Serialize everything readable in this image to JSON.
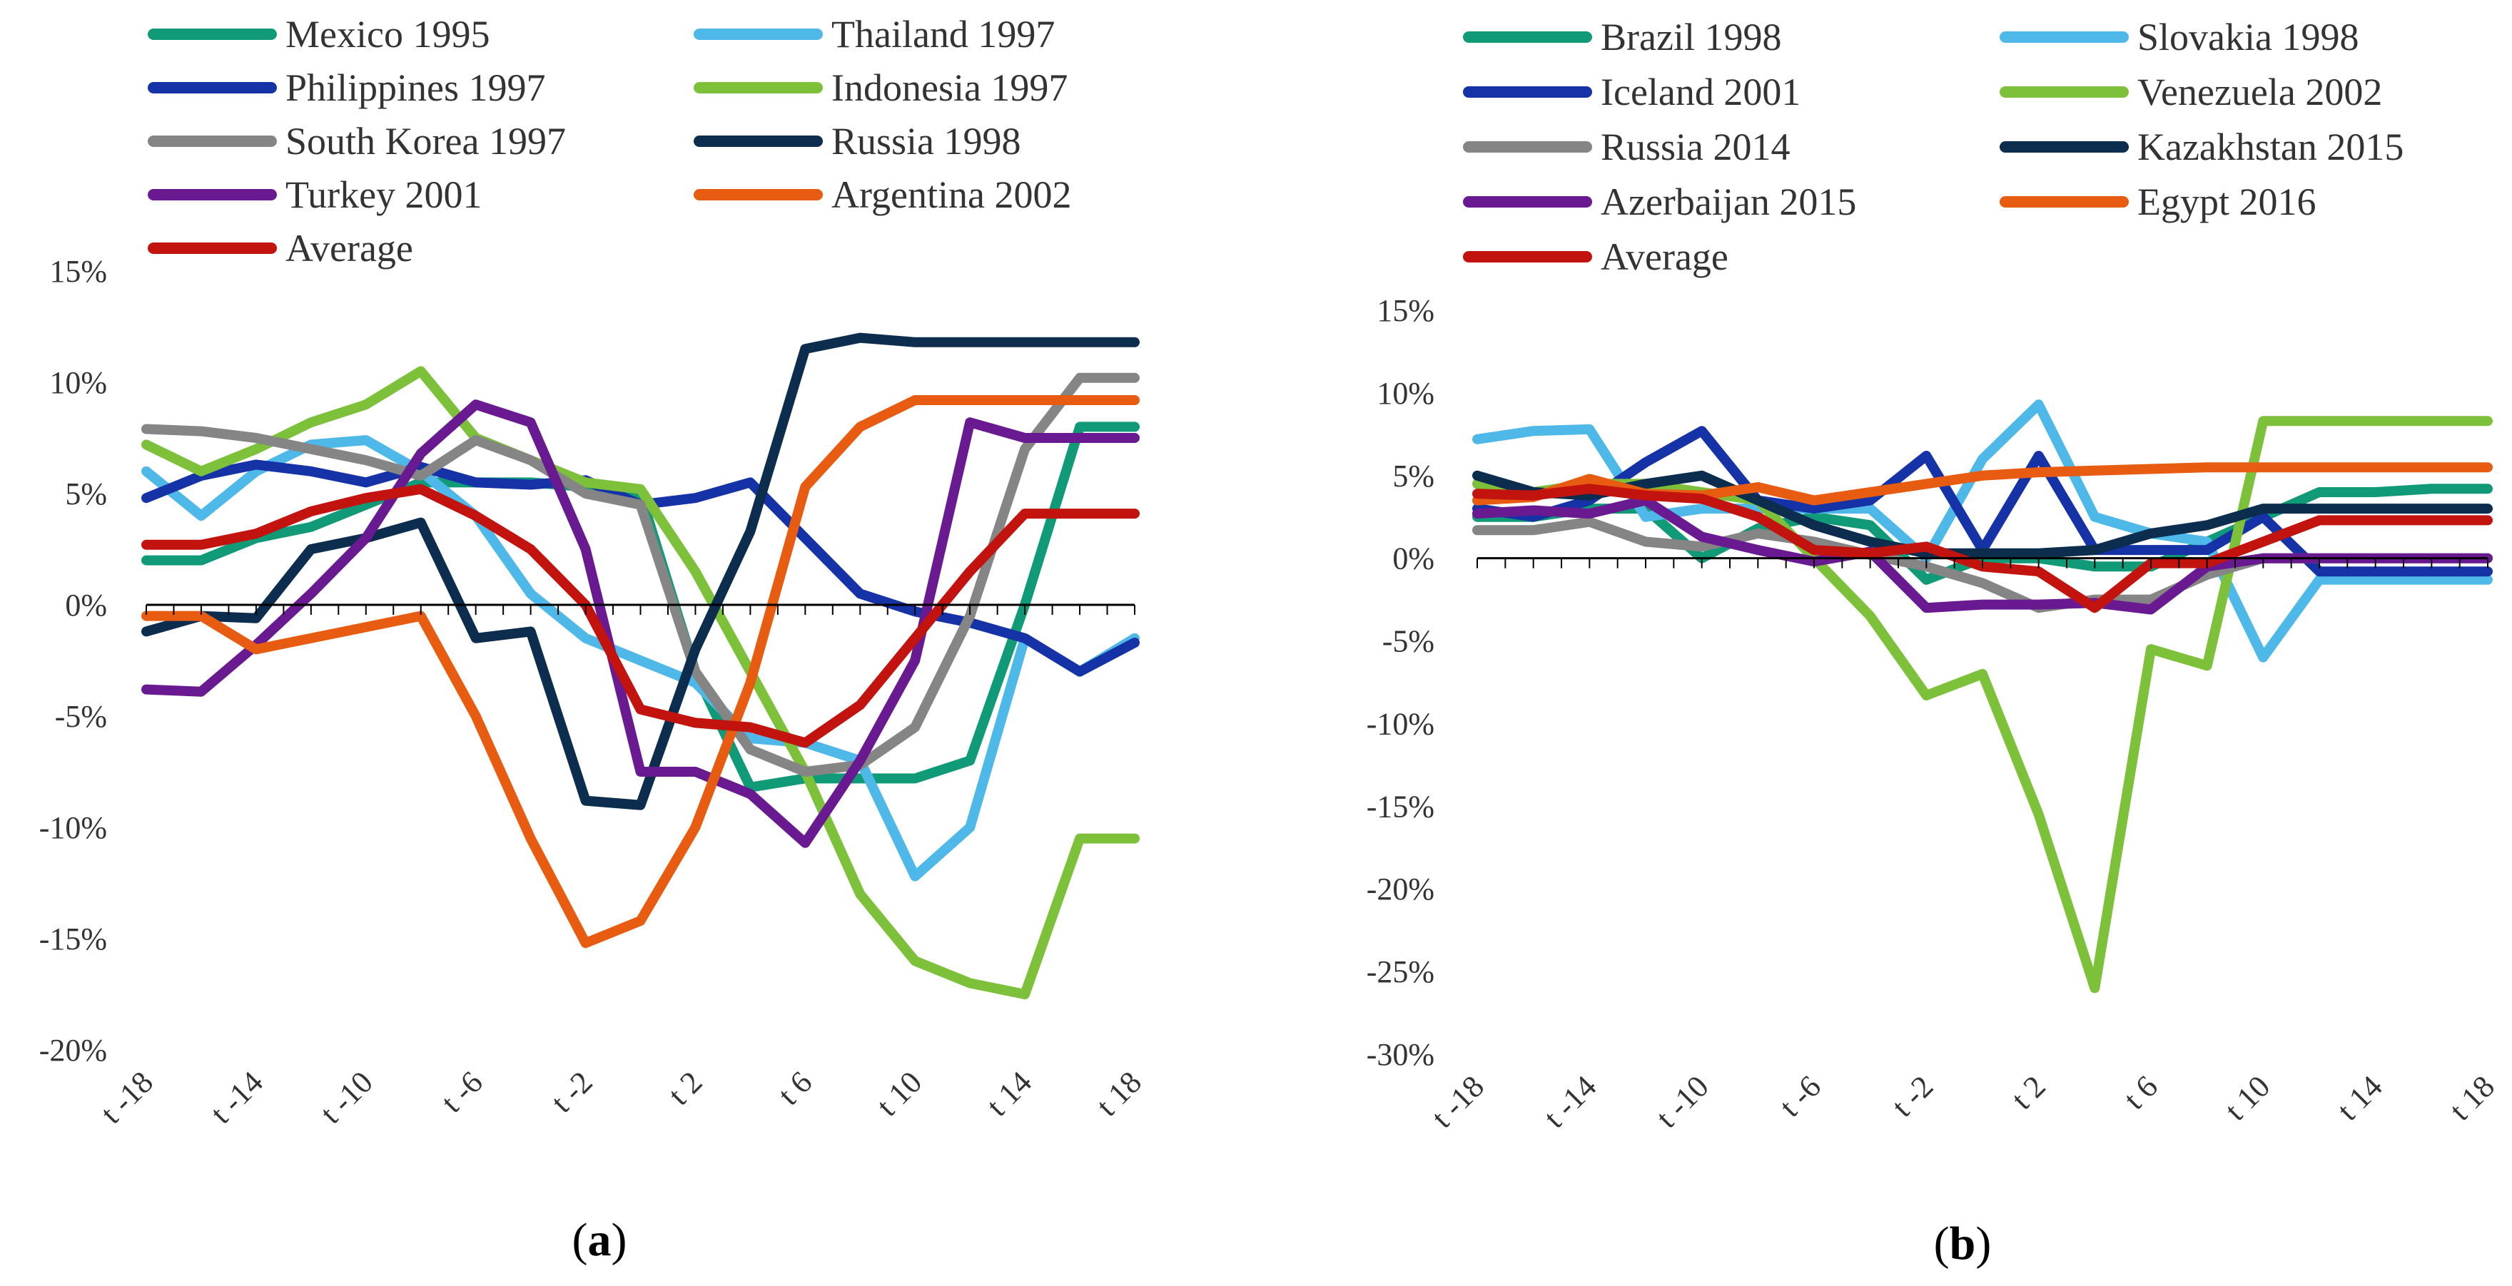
{
  "chart_data": [
    {
      "type": "line",
      "caption": "(a)",
      "caption_letter": "a",
      "ylim": [
        -20,
        15
      ],
      "y_ticks": [
        15,
        10,
        5,
        0,
        -5,
        -10,
        -15,
        -20
      ],
      "y_tick_labels": [
        "15%",
        "10%",
        "5%",
        "0%",
        "-5%",
        "-10%",
        "-15%",
        "-20%"
      ],
      "x_tick_labels": [
        "t -18",
        "t -14",
        "t -10",
        "t -6",
        "t -2",
        "t 2",
        "t 6",
        "t 10",
        "t 14",
        "t 18"
      ],
      "x_tick_values": [
        -18,
        -14,
        -10,
        -6,
        -2,
        2,
        6,
        10,
        14,
        18
      ],
      "x": [
        -18,
        -16,
        -14,
        -12,
        -10,
        -8,
        -6,
        -4,
        -2,
        0,
        2,
        4,
        6,
        8,
        10,
        12,
        14,
        16,
        18
      ],
      "legend_placement": "top",
      "series": [
        {
          "name": "Mexico 1995",
          "color": "#109A78",
          "values": [
            2,
            2,
            3,
            3.5,
            4.5,
            5.5,
            5.5,
            5.5,
            5.3,
            5,
            -3,
            -8.2,
            -7.8,
            -7.8,
            -7.8,
            -7,
            0,
            8,
            8
          ]
        },
        {
          "name": "Thailand 1997",
          "color": "#4EB8E8",
          "values": [
            6,
            4,
            6,
            7.2,
            7.4,
            6,
            4,
            0.5,
            -1.5,
            -2.5,
            -3.5,
            -6,
            -6.2,
            -7,
            -12.2,
            -10,
            -1.5,
            -3,
            -1.5
          ]
        },
        {
          "name": "Philippines 1997",
          "color": "#1632A7",
          "values": [
            4.8,
            5.8,
            6.3,
            6,
            5.5,
            6.2,
            5.5,
            5.4,
            5.6,
            4.5,
            4.8,
            5.5,
            3,
            0.5,
            -0.3,
            -0.8,
            -1.5,
            -3,
            -1.7
          ]
        },
        {
          "name": "Indonesia 1997",
          "color": "#7DC13B",
          "values": [
            7.2,
            6,
            7,
            8.2,
            9,
            10.5,
            7.5,
            6.5,
            5.5,
            5.2,
            1.5,
            -3,
            -7.5,
            -13,
            -16,
            -17,
            -17.5,
            -10.5,
            -10.5
          ]
        },
        {
          "name": "South Korea 1997",
          "color": "#858585",
          "values": [
            7.9,
            7.8,
            7.5,
            7,
            6.5,
            5.8,
            7.4,
            6.5,
            5,
            4.5,
            -3,
            -6.5,
            -7.5,
            -7.2,
            -5.5,
            -0.5,
            7,
            10.2,
            10.2
          ]
        },
        {
          "name": "Russia 1998",
          "color": "#0C2D4E",
          "values": [
            -1.2,
            -0.5,
            -0.6,
            2.5,
            3,
            3.7,
            -1.5,
            -1.2,
            -8.8,
            -9,
            -2,
            3.3,
            11.5,
            12,
            11.8,
            11.8,
            11.8,
            11.8,
            11.8
          ]
        },
        {
          "name": "Turkey 2001",
          "color": "#6A1A91",
          "values": [
            -3.8,
            -3.9,
            -1.8,
            0.5,
            3,
            6.8,
            9,
            8.2,
            2.5,
            -7.5,
            -7.5,
            -8.5,
            -10.7,
            -7,
            -2.5,
            8.2,
            7.5,
            7.5,
            7.5
          ]
        },
        {
          "name": "Argentina 2002",
          "color": "#E85C12",
          "values": [
            -0.5,
            -0.5,
            -2,
            -1.5,
            -1,
            -0.5,
            -5,
            -10.5,
            -15.2,
            -14.2,
            -10,
            -3.5,
            5.3,
            8,
            9.2,
            9.2,
            9.2,
            9.2,
            9.2
          ]
        },
        {
          "name": "Average",
          "color": "#C3130E",
          "values": [
            2.7,
            2.7,
            3.2,
            4.2,
            4.8,
            5.2,
            4,
            2.5,
            0,
            -4.7,
            -5.3,
            -5.5,
            -6.2,
            -4.5,
            -1.5,
            1.5,
            4.1,
            4.1,
            4.1
          ]
        }
      ]
    },
    {
      "type": "line",
      "caption": "(b)",
      "caption_letter": "b",
      "ylim": [
        -30,
        15
      ],
      "y_ticks": [
        15,
        10,
        5,
        0,
        -5,
        -10,
        -15,
        -20,
        -25,
        -30
      ],
      "y_tick_labels": [
        "15%",
        "10%",
        "5%",
        "0%",
        "-5%",
        "-10%",
        "-15%",
        "-20%",
        "-25%",
        "-30%"
      ],
      "x_tick_labels": [
        "t -18",
        "t -14",
        "t -10",
        "t -6",
        "t -2",
        "t 2",
        "t 6",
        "t 10",
        "t 14",
        "t 18"
      ],
      "x_tick_values": [
        -18,
        -14,
        -10,
        -6,
        -2,
        2,
        6,
        10,
        14,
        18
      ],
      "x": [
        -18,
        -16,
        -14,
        -12,
        -10,
        -8,
        -6,
        -4,
        -2,
        0,
        2,
        4,
        6,
        8,
        10,
        12,
        14,
        16,
        18
      ],
      "legend_placement": "top",
      "series": [
        {
          "name": "Brazil 1998",
          "color": "#109A78",
          "values": [
            2.5,
            2.5,
            3,
            3,
            0,
            1.8,
            2.5,
            2,
            -1.3,
            0,
            0,
            -0.5,
            -0.5,
            1,
            2.5,
            4,
            4,
            4.2,
            4.2
          ]
        },
        {
          "name": "Slovakia 1998",
          "color": "#4EB8E8",
          "values": [
            7.2,
            7.7,
            7.8,
            2.5,
            3,
            3,
            3,
            3,
            0,
            6,
            9.3,
            2.5,
            1.5,
            1,
            -6,
            -1.3,
            -1.3,
            -1.3,
            -1.3
          ]
        },
        {
          "name": "Iceland 2001",
          "color": "#1632A7",
          "values": [
            3,
            2.5,
            3.5,
            5.8,
            7.7,
            3.5,
            3,
            3.5,
            6.2,
            0.5,
            6.2,
            0.5,
            0.5,
            0.5,
            2.5,
            -0.8,
            -0.8,
            -0.8,
            -0.8
          ]
        },
        {
          "name": "Venezuela 2002",
          "color": "#7DC13B",
          "values": [
            4.5,
            4,
            4.5,
            4.5,
            4,
            3.5,
            0,
            -3.5,
            -8.3,
            -7,
            -15.5,
            -26,
            -5.5,
            -6.5,
            8.3,
            8.3,
            8.3,
            8.3,
            8.3
          ]
        },
        {
          "name": "Russia 2014",
          "color": "#858585",
          "values": [
            1.7,
            1.7,
            2.2,
            1,
            0.7,
            1.5,
            1,
            0.2,
            -0.5,
            -1.5,
            -3,
            -2.5,
            -2.5,
            -1,
            0,
            0,
            0,
            0,
            0
          ]
        },
        {
          "name": "Kazakhstan 2015",
          "color": "#0C2D4E",
          "values": [
            5,
            4,
            3.8,
            4.5,
            5,
            3.5,
            2,
            1,
            0.3,
            0.3,
            0.3,
            0.5,
            1.5,
            2,
            3,
            3,
            3,
            3,
            3
          ]
        },
        {
          "name": "Azerbaijan 2015",
          "color": "#6A1A91",
          "values": [
            2.7,
            2.9,
            2.7,
            3.5,
            1.3,
            0.5,
            -0.2,
            0.4,
            -3,
            -2.8,
            -2.8,
            -2.7,
            -3.1,
            -0.5,
            0,
            0,
            0,
            0,
            0
          ]
        },
        {
          "name": "Egypt 2016",
          "color": "#E85C12",
          "values": [
            3.5,
            3.7,
            4.8,
            3.9,
            3.8,
            4.3,
            3.5,
            4,
            4.5,
            5,
            5.2,
            5.3,
            5.4,
            5.5,
            5.5,
            5.5,
            5.5,
            5.5,
            5.5
          ]
        },
        {
          "name": "Average",
          "color": "#C3130E",
          "values": [
            3.9,
            3.8,
            4.2,
            3.8,
            3.6,
            2.5,
            0.5,
            0.3,
            0.7,
            -0.5,
            -0.8,
            -3,
            -0.3,
            -0.3,
            1,
            2.3,
            2.3,
            2.3,
            2.3
          ]
        }
      ]
    }
  ]
}
